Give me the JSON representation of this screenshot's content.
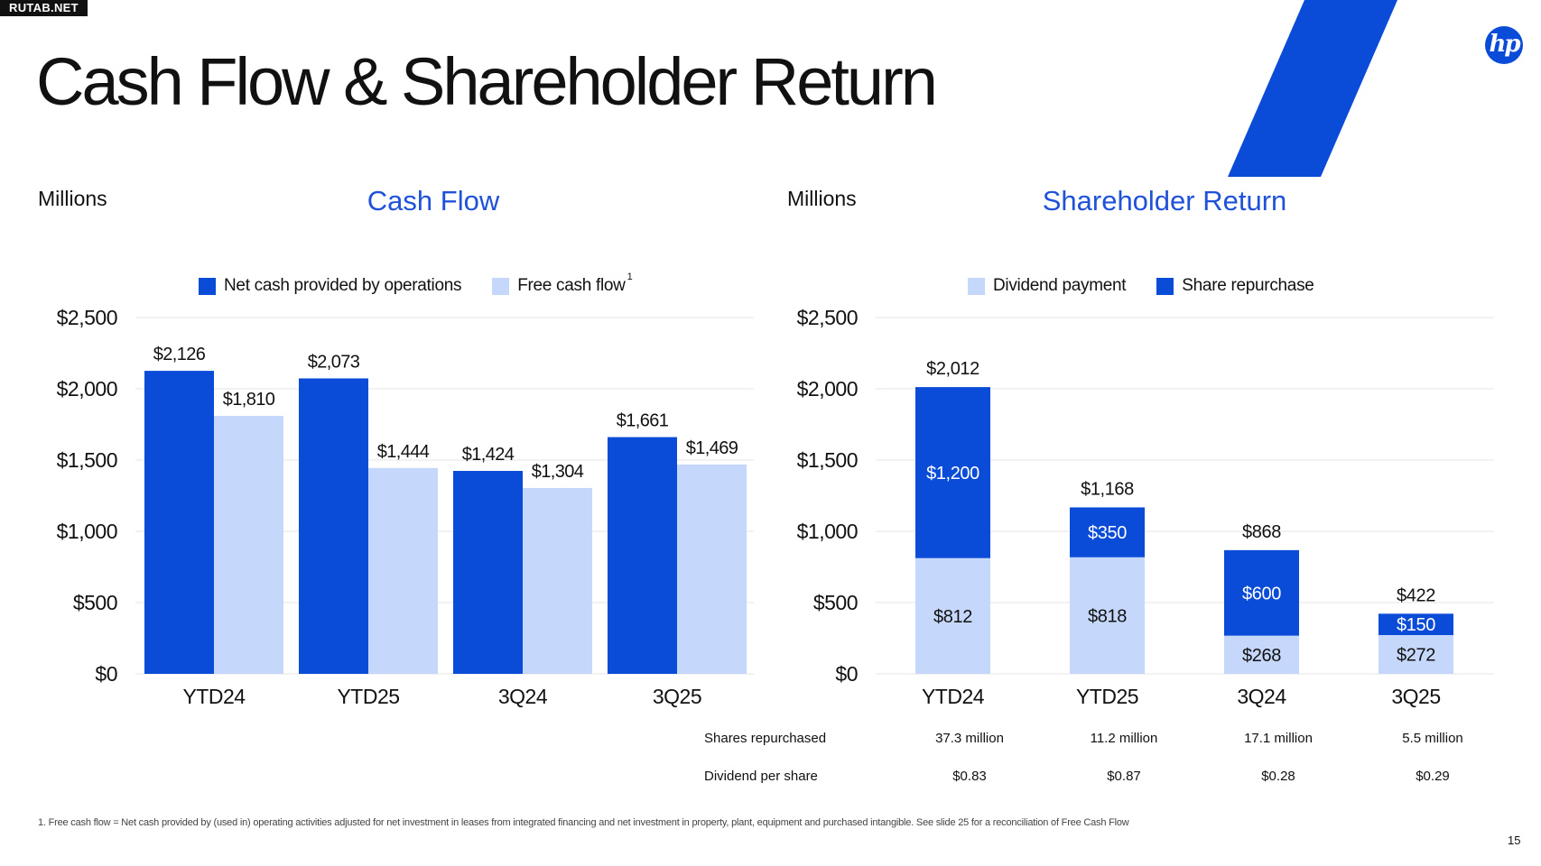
{
  "watermark": "RUTAB.NET",
  "title": "Cash Flow & Shareholder Return",
  "brand": {
    "logo_text": "hp",
    "accent": "#0a4bd8"
  },
  "colors": {
    "dark_blue": "#0a4bd8",
    "light_blue": "#c5d8fb",
    "title_blue": "#1f52d9",
    "grid": "#e6e6e6"
  },
  "left_panel": {
    "units": "Millions",
    "title": "Cash Flow",
    "legend": [
      {
        "label": "Net cash provided by operations",
        "color": "#0a4bd8"
      },
      {
        "label": "Free cash flow",
        "sup": "1",
        "color": "#c5d8fb"
      }
    ]
  },
  "right_panel": {
    "units": "Millions",
    "title": "Shareholder Return",
    "legend": [
      {
        "label": "Dividend payment",
        "color": "#c5d8fb"
      },
      {
        "label": "Share repurchase",
        "color": "#0a4bd8"
      }
    ]
  },
  "chart_data": [
    {
      "type": "bar",
      "title": "Cash Flow",
      "ylabel": "Millions",
      "categories": [
        "YTD24",
        "YTD25",
        "3Q24",
        "3Q25"
      ],
      "ylim": [
        0,
        2500
      ],
      "yticks": [
        0,
        500,
        1000,
        1500,
        2000,
        2500
      ],
      "ytick_labels": [
        "$0",
        "$500",
        "$1,000",
        "$1,500",
        "$2,000",
        "$2,500"
      ],
      "grid": true,
      "legend_position": "top",
      "series": [
        {
          "name": "Net cash provided by operations",
          "color": "#0a4bd8",
          "values": [
            2126,
            2073,
            1424,
            1661
          ],
          "labels": [
            "$2,126",
            "$2,073",
            "$1,424",
            "$1,661"
          ]
        },
        {
          "name": "Free cash flow",
          "color": "#c5d8fb",
          "values": [
            1810,
            1444,
            1304,
            1469
          ],
          "labels": [
            "$1,810",
            "$1,444",
            "$1,304",
            "$1,469"
          ]
        }
      ]
    },
    {
      "type": "bar",
      "stacked": true,
      "title": "Shareholder Return",
      "ylabel": "Millions",
      "categories": [
        "YTD24",
        "YTD25",
        "3Q24",
        "3Q25"
      ],
      "ylim": [
        0,
        2500
      ],
      "yticks": [
        0,
        500,
        1000,
        1500,
        2000,
        2500
      ],
      "ytick_labels": [
        "$0",
        "$500",
        "$1,000",
        "$1,500",
        "$2,000",
        "$2,500"
      ],
      "grid": true,
      "legend_position": "top",
      "series": [
        {
          "name": "Dividend payment",
          "color": "#c5d8fb",
          "values": [
            812,
            818,
            268,
            272
          ],
          "labels": [
            "$812",
            "$818",
            "$268",
            "$272"
          ]
        },
        {
          "name": "Share repurchase",
          "color": "#0a4bd8",
          "values": [
            1200,
            350,
            600,
            150
          ],
          "labels": [
            "$1,200",
            "$350",
            "$600",
            "$150"
          ]
        }
      ],
      "totals": [
        2012,
        1168,
        868,
        422
      ],
      "total_labels": [
        "$2,012",
        "$1,168",
        "$868",
        "$422"
      ]
    }
  ],
  "table": {
    "rows": [
      {
        "label": "Shares repurchased",
        "values": [
          "37.3  million",
          "11.2  million",
          "17.1 million",
          "5.5  million"
        ]
      },
      {
        "label": "Dividend per share",
        "values": [
          "$0.83",
          "$0.87",
          "$0.28",
          "$0.29"
        ]
      }
    ]
  },
  "footnote": "1.   Free cash flow = Net cash provided by (used in) operating activities adjusted for net investment in leases from integrated financing  and net investment in property, plant, equipment and purchased intangible. See slide 25 for a reconciliation of Free Cash Flow",
  "page_number": "15"
}
